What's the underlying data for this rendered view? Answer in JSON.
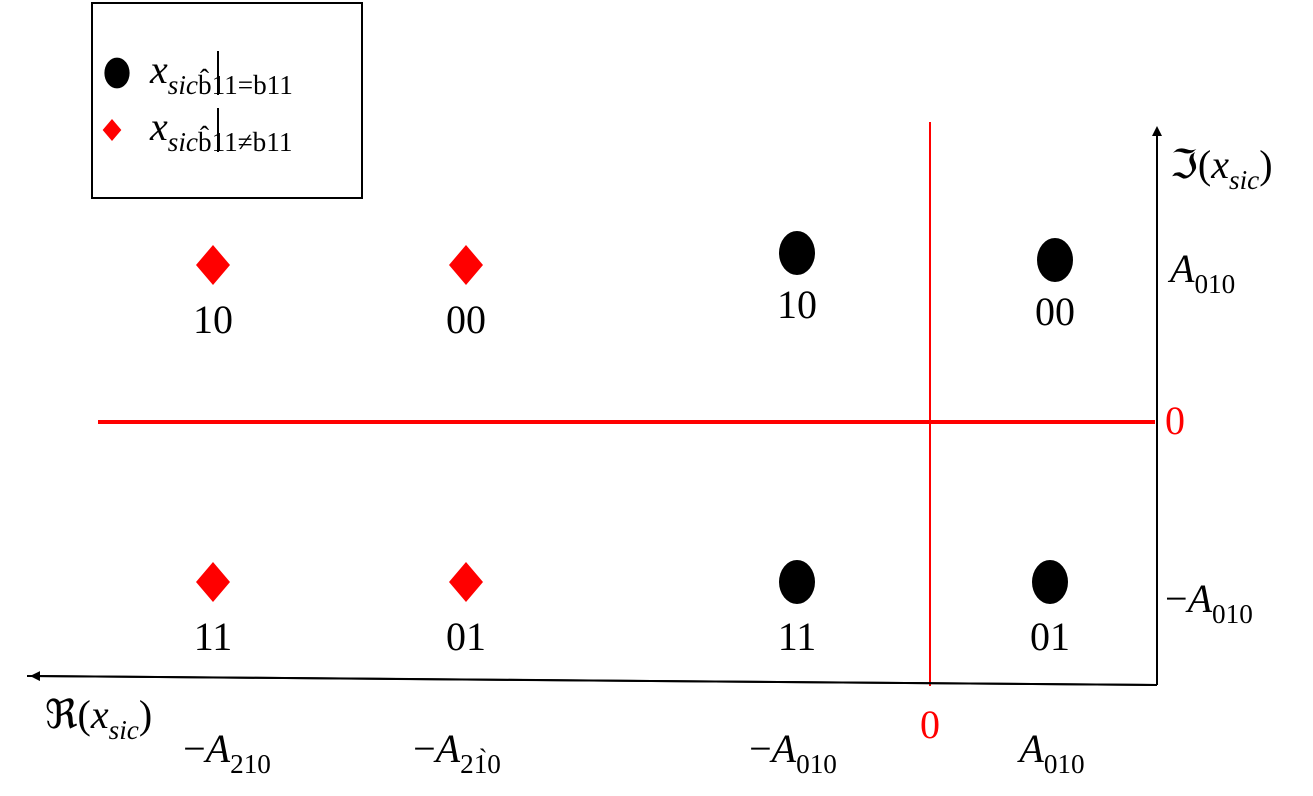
{
  "groups": [
    {
      "marker": "circle",
      "color": "#000000",
      "legend": {
        "variable": "x",
        "variable_sub": "sic",
        "condition": "b̂11=b11"
      },
      "points": [
        "10",
        "00",
        "11",
        "01"
      ]
    },
    {
      "marker": "diamond",
      "color": "#ff0000",
      "legend": {
        "variable": "x",
        "variable_sub": "sic",
        "condition": "b̂11≠b11"
      },
      "points": [
        "10",
        "00",
        "11",
        "01"
      ]
    }
  ],
  "axes": {
    "imaginary_label": {
      "prefix": "ℑ(",
      "variable": "x",
      "variable_sub": "sic",
      "suffix": ")"
    },
    "real_label": {
      "prefix": "ℜ(",
      "variable": "x",
      "variable_sub": "sic",
      "suffix": ")"
    },
    "y_labels": [
      {
        "symbol": "A",
        "sub": "010"
      },
      {
        "zero": "0"
      },
      {
        "sign": "−",
        "symbol": "A",
        "sub": "010"
      }
    ],
    "x_labels": [
      {
        "sign": "−",
        "symbol": "A",
        "sub": "210"
      },
      {
        "sign": "−",
        "symbol": "A",
        "sub": "21̀0"
      },
      {
        "sign": "−",
        "symbol": "A",
        "sub": "010"
      },
      {
        "zero": "0"
      },
      {
        "symbol": "A",
        "sub": "010"
      }
    ]
  }
}
